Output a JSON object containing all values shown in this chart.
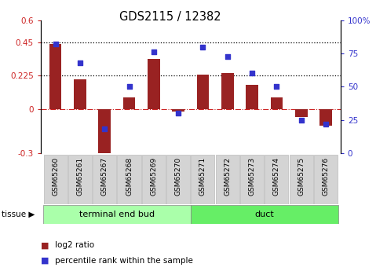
{
  "title": "GDS2115 / 12382",
  "categories": [
    "GSM65260",
    "GSM65261",
    "GSM65267",
    "GSM65268",
    "GSM65269",
    "GSM65270",
    "GSM65271",
    "GSM65272",
    "GSM65273",
    "GSM65274",
    "GSM65275",
    "GSM65276"
  ],
  "log2_ratio": [
    0.44,
    0.2,
    -0.36,
    0.075,
    0.34,
    -0.02,
    0.23,
    0.24,
    0.165,
    0.075,
    -0.055,
    -0.115
  ],
  "percentile_rank": [
    82,
    68,
    18,
    50,
    76,
    30,
    80,
    73,
    60,
    50,
    25,
    22
  ],
  "bar_color": "#992222",
  "dot_color": "#3333cc",
  "ylim_left": [
    -0.3,
    0.6
  ],
  "ylim_right": [
    0,
    100
  ],
  "yticks_left": [
    -0.3,
    0,
    0.225,
    0.45,
    0.6
  ],
  "yticks_right": [
    0,
    25,
    50,
    75,
    100
  ],
  "hlines": [
    0.45,
    0.225
  ],
  "hline_zero_color": "#cc2222",
  "groups": [
    {
      "label": "terminal end bud",
      "start": 0,
      "end": 6,
      "color": "#aaffaa"
    },
    {
      "label": "duct",
      "start": 6,
      "end": 12,
      "color": "#66ee66"
    }
  ],
  "tissue_label": "tissue",
  "legend_log2": "log2 ratio",
  "legend_pct": "percentile rank within the sample",
  "bg_color": "#ffffff",
  "bar_width": 0.5
}
